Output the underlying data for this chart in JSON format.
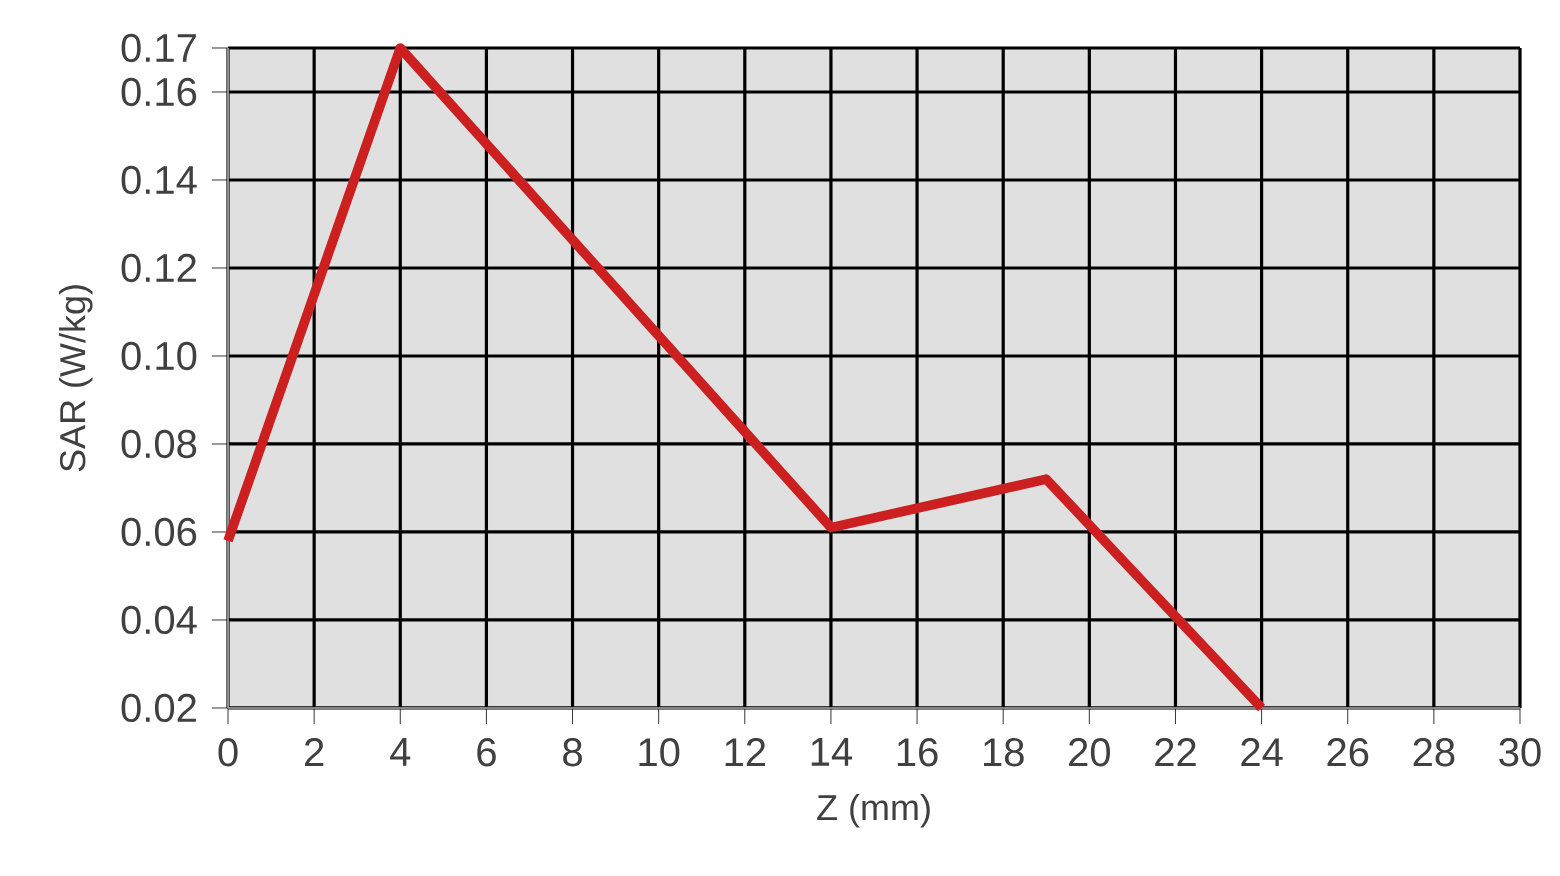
{
  "chart_data": {
    "type": "line",
    "xlabel": "Z (mm)",
    "ylabel": "SAR (W/kg)",
    "x": [
      0,
      4,
      14,
      19,
      24
    ],
    "series": [
      {
        "color": "#cc1f1f",
        "values": [
          0.058,
          0.17,
          0.061,
          0.072,
          0.02
        ]
      }
    ],
    "xlim": [
      0,
      30
    ],
    "xticks": [
      0,
      2,
      4,
      6,
      8,
      10,
      12,
      14,
      16,
      18,
      20,
      22,
      24,
      26,
      28,
      30
    ],
    "ylim": [
      0.02,
      0.17
    ],
    "yticks": [
      0.02,
      0.04,
      0.06,
      0.08,
      {
        "value": 0.1,
        "label": "0.10"
      },
      0.12,
      0.14,
      0.16,
      0.17
    ],
    "grid": true,
    "line_style": "solid",
    "marker": "none"
  }
}
